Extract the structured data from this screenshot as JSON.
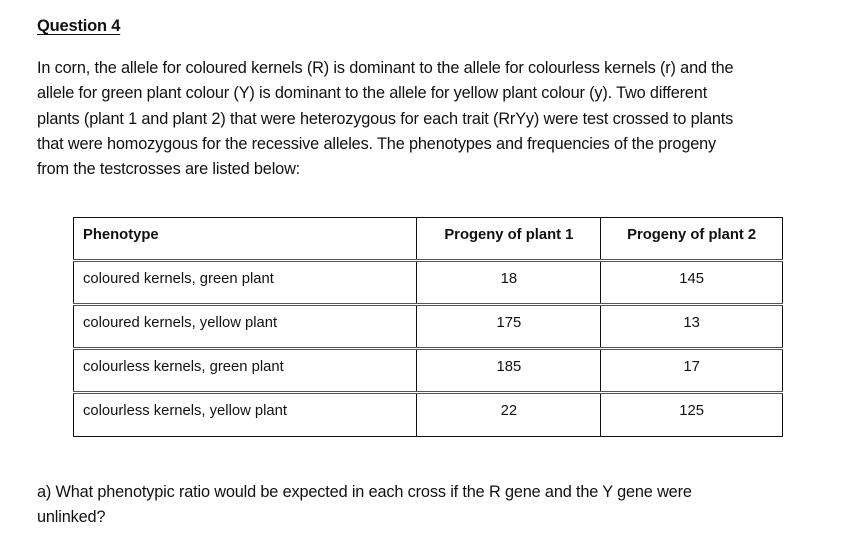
{
  "heading": "Question 4",
  "intro_lines": [
    "In corn, the allele for coloured kernels (R) is dominant to the allele for colourless kernels (r) and the",
    "allele for green plant colour (Y) is dominant to the allele for yellow plant colour (y). Two different",
    "plants (plant 1 and plant 2) that were heterozygous for each trait (RrYy) were test crossed to plants",
    "that were homozygous for the recessive alleles. The phenotypes and frequencies of the progeny",
    "from the testcrosses are listed below:"
  ],
  "table": {
    "headers": [
      "Phenotype",
      "Progeny of plant 1",
      "Progeny of plant 2"
    ],
    "rows": [
      {
        "phenotype": "coloured kernels, green plant",
        "plant1": "18",
        "plant2": "145"
      },
      {
        "phenotype": "coloured kernels, yellow plant",
        "plant1": "175",
        "plant2": "13"
      },
      {
        "phenotype": "colourless kernels, green plant",
        "plant1": "185",
        "plant2": "17"
      },
      {
        "phenotype": "colourless kernels, yellow plant",
        "plant1": "22",
        "plant2": "125"
      }
    ]
  },
  "question_lines": [
    "a) What phenotypic ratio would be expected in each cross if the R gene and the Y gene were",
    "unlinked?"
  ]
}
